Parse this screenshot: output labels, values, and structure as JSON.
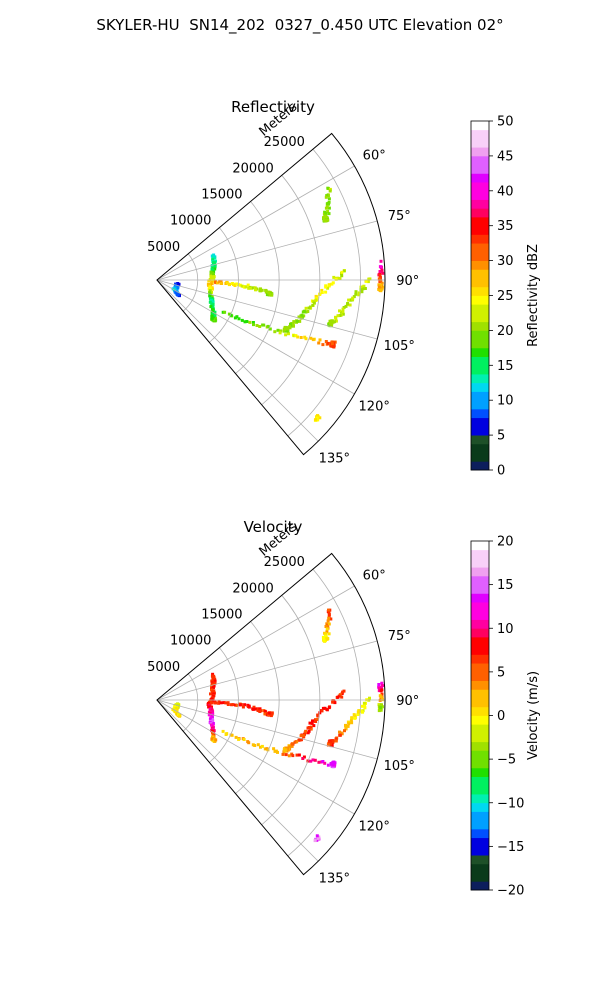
{
  "figure": {
    "suptitle": "SKYLER-HU  SN14_202  0327_0.450 UTC Elevation 02°"
  },
  "colors": {
    "grid": "#b0b0b0",
    "frame": "#000000"
  },
  "chart_data": [
    {
      "type": "polar-sector",
      "title": "Reflectivity",
      "radial_axis_label": "Meters",
      "radial_ticks": [
        5000,
        10000,
        15000,
        20000,
        25000
      ],
      "radial_tick_labels": [
        "5000",
        "10000",
        "15000",
        "20000",
        "25000"
      ],
      "rlim": [
        0,
        28000
      ],
      "angle_ticks": [
        60,
        75,
        90,
        105,
        120,
        135
      ],
      "angle_tick_labels": [
        "60°",
        "75°",
        "90°",
        "105°",
        "120°",
        "135°"
      ],
      "thetalim": [
        50,
        140
      ],
      "grid": true,
      "colorbar": {
        "label": "Reflectivity dBZ",
        "range": [
          0,
          50
        ],
        "ticks": [
          0,
          5,
          10,
          15,
          20,
          25,
          30,
          35,
          40,
          45,
          50
        ],
        "tick_labels": [
          "0",
          "5",
          "10",
          "15",
          "20",
          "25",
          "30",
          "35",
          "40",
          "45",
          "50"
        ],
        "levels": 40,
        "colormap": [
          "#0c1e5c",
          "#0a3a1a",
          "#1e5028",
          "#0000e0",
          "#0050ff",
          "#00a0ff",
          "#00d8f0",
          "#00f0b0",
          "#00f060",
          "#20e000",
          "#70e000",
          "#a0e000",
          "#d0f000",
          "#ffff00",
          "#ffe000",
          "#ffc000",
          "#ff9000",
          "#ff6000",
          "#ff3000",
          "#ff0000",
          "#ff0060",
          "#ff00a0",
          "#ff00e0",
          "#e000ff",
          "#e060ff",
          "#f0a0f0",
          "#f8d0f8",
          "#ffffff"
        ]
      },
      "features": [
        {
          "name": "near-range-ring-echo",
          "path": [
            [
              2500,
              100
            ],
            [
              2500,
              120
            ],
            [
              3200,
              125
            ]
          ],
          "values": [
            5,
            12,
            8
          ]
        },
        {
          "name": "arc-echo-8km",
          "path": [
            [
              7500,
              66
            ],
            [
              7000,
              80
            ],
            [
              6500,
              95
            ],
            [
              7200,
              112
            ],
            [
              8500,
              125
            ]
          ],
          "values": [
            12,
            16,
            28,
            14,
            18
          ]
        },
        {
          "name": "long-radial-line-92",
          "path": [
            [
              7000,
              92
            ],
            [
              11000,
              94
            ],
            [
              14000,
              97
            ]
          ],
          "values": [
            30,
            22,
            20
          ]
        },
        {
          "name": "clutter-band-115",
          "path": [
            [
              9000,
              116
            ],
            [
              16000,
              113
            ],
            [
              23000,
              110
            ]
          ],
          "values": [
            18,
            20,
            32
          ]
        },
        {
          "name": "oblique-line-a",
          "path": [
            [
              23000,
              87
            ],
            [
              20000,
              95
            ],
            [
              18500,
              103
            ],
            [
              17000,
              111
            ]
          ],
          "values": [
            22,
            25,
            20,
            20
          ]
        },
        {
          "name": "oblique-line-b",
          "path": [
            [
              26000,
              90
            ],
            [
              24000,
              96
            ],
            [
              22000,
              104
            ]
          ],
          "values": [
            22,
            22,
            20
          ]
        },
        {
          "name": "echo-at-90-27km",
          "path": [
            [
              27500,
              86
            ],
            [
              27500,
              92
            ]
          ],
          "values": [
            40,
            28
          ]
        },
        {
          "name": "far-speckle-60",
          "path": [
            [
              24000,
              62
            ],
            [
              22000,
              70
            ]
          ],
          "values": [
            20,
            20
          ]
        },
        {
          "name": "echo-near-135",
          "path": [
            [
              26000,
              131
            ]
          ],
          "values": [
            25
          ]
        }
      ]
    },
    {
      "type": "polar-sector",
      "title": "Velocity",
      "radial_axis_label": "Meters",
      "radial_ticks": [
        5000,
        10000,
        15000,
        20000,
        25000
      ],
      "radial_tick_labels": [
        "5000",
        "10000",
        "15000",
        "20000",
        "25000"
      ],
      "rlim": [
        0,
        28000
      ],
      "angle_ticks": [
        60,
        75,
        90,
        105,
        120,
        135
      ],
      "angle_tick_labels": [
        "60°",
        "75°",
        "90°",
        "105°",
        "120°",
        "135°"
      ],
      "thetalim": [
        50,
        140
      ],
      "grid": true,
      "colorbar": {
        "label": "Velocity (m/s)",
        "range": [
          -20,
          20
        ],
        "ticks": [
          -20,
          -15,
          -10,
          -5,
          0,
          5,
          10,
          15,
          20
        ],
        "tick_labels": [
          "−20",
          "−15",
          "−10",
          "−5",
          "0",
          "5",
          "10",
          "15",
          "20"
        ],
        "levels": 40,
        "colormap": [
          "#0c1e5c",
          "#0a3a1a",
          "#1e5028",
          "#0000e0",
          "#0050ff",
          "#00a0ff",
          "#00d8f0",
          "#00f0b0",
          "#00f060",
          "#20e000",
          "#70e000",
          "#a0e000",
          "#d0f000",
          "#ffff00",
          "#ffe000",
          "#ffc000",
          "#ff9000",
          "#ff6000",
          "#ff3000",
          "#ff0000",
          "#ff0060",
          "#ff00a0",
          "#ff00e0",
          "#e000ff",
          "#e060ff",
          "#f0a0f0",
          "#f8d0f8",
          "#ffffff"
        ]
      },
      "features": [
        {
          "name": "near-range-ring-echo",
          "path": [
            [
              2500,
              100
            ],
            [
              2500,
              120
            ],
            [
              3200,
              125
            ]
          ],
          "values": [
            -2,
            0,
            1
          ]
        },
        {
          "name": "arc-echo-8km",
          "path": [
            [
              7500,
              66
            ],
            [
              7000,
              80
            ],
            [
              6500,
              95
            ],
            [
              7200,
              112
            ],
            [
              8500,
              125
            ]
          ],
          "values": [
            7,
            7,
            7,
            15,
            2
          ]
        },
        {
          "name": "long-radial-line-92",
          "path": [
            [
              7000,
              92
            ],
            [
              11000,
              94
            ],
            [
              14000,
              97
            ]
          ],
          "values": [
            7,
            7,
            6
          ]
        },
        {
          "name": "clutter-band-115",
          "path": [
            [
              9000,
              116
            ],
            [
              16000,
              113
            ],
            [
              23000,
              110
            ]
          ],
          "values": [
            1,
            3,
            14
          ]
        },
        {
          "name": "oblique-line-a",
          "path": [
            [
              23000,
              87
            ],
            [
              20000,
              95
            ],
            [
              18500,
              103
            ],
            [
              17000,
              111
            ]
          ],
          "values": [
            7,
            7,
            7,
            3
          ]
        },
        {
          "name": "oblique-line-b",
          "path": [
            [
              26000,
              90
            ],
            [
              24000,
              96
            ],
            [
              22000,
              104
            ]
          ],
          "values": [
            -2,
            1,
            7
          ]
        },
        {
          "name": "echo-at-90-27km",
          "path": [
            [
              27500,
              86
            ],
            [
              27500,
              92
            ]
          ],
          "values": [
            14,
            -3
          ]
        },
        {
          "name": "far-speckle-60",
          "path": [
            [
              24000,
              62
            ],
            [
              22000,
              70
            ]
          ],
          "values": [
            7,
            0
          ]
        },
        {
          "name": "echo-near-135",
          "path": [
            [
              26000,
              131
            ]
          ],
          "values": [
            15
          ]
        }
      ]
    }
  ]
}
